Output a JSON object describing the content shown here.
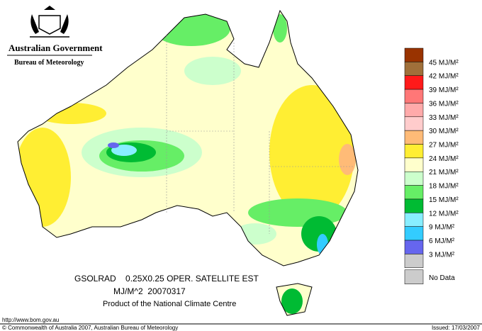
{
  "header": {
    "title": "Australian Government",
    "subtitle": "Bureau of Meteorology"
  },
  "map_title": [
    "GSOLRAD    0.25X0.25 OPER. SATELLITE EST",
    "MJ/M^2  20070317",
    "Product of the National Climate Centre"
  ],
  "legend": {
    "labels": [
      "45 MJ/M²",
      "42 MJ/M²",
      "39 MJ/M²",
      "36 MJ/M²",
      "33 MJ/M²",
      "30 MJ/M²",
      "27 MJ/M²",
      "24 MJ/M²",
      "21 MJ/M²",
      "18 MJ/M²",
      "15 MJ/M²",
      "12 MJ/M²",
      "9 MJ/M²",
      "6 MJ/M²",
      "3 MJ/M²"
    ],
    "colors": [
      "#993300",
      "#a0703a",
      "#ff1a1a",
      "#ff7777",
      "#ffaaaa",
      "#ffcccc",
      "#ffbb77",
      "#ffee33",
      "#ffffcc",
      "#ccffcc",
      "#66ee66",
      "#00bb33",
      "#88eeff",
      "#33ccff",
      "#6666ee",
      "#cccccc"
    ],
    "no_data": {
      "label": "No Data",
      "color": "#cccccc"
    }
  },
  "footer": {
    "url": "http://www.bom.gov.au",
    "copyright": "© Commonwealth of Australia 2007, Australian Bureau of Meteorology",
    "issued": "Issued: 17/03/2007"
  }
}
